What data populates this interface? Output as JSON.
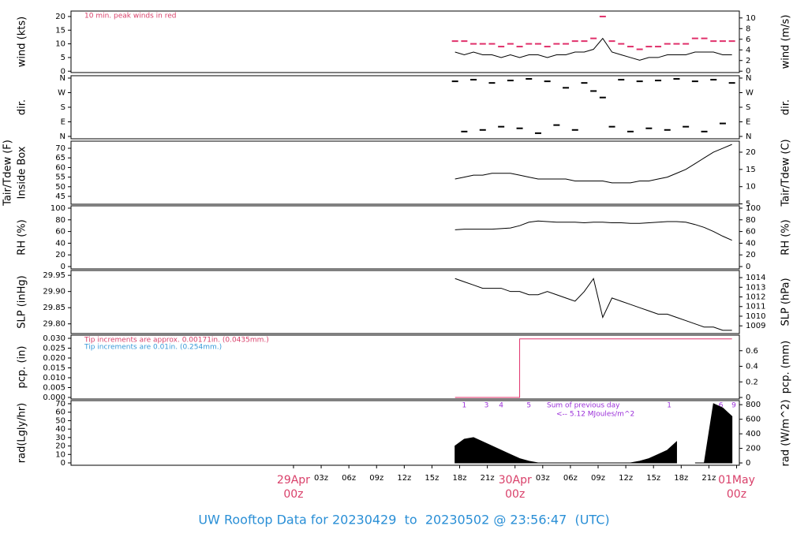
{
  "chart_data": [
    {
      "type": "line",
      "ylabel": "wind (kts)",
      "y2label": "wind (m/s)",
      "xlim": [
        -24.1,
        48.3
      ],
      "ylim": [
        -0.5,
        22
      ],
      "yticks": [
        0,
        5,
        10,
        15,
        20
      ],
      "y2lim": [
        -0.26,
        11.3
      ],
      "y2ticks": [
        0,
        2,
        4,
        6,
        8,
        10
      ],
      "annotations": [
        {
          "text": "10 min. peak winds in red",
          "color": "#d9406a"
        }
      ],
      "x": [
        17.5,
        18.5,
        19.5,
        20.5,
        21.5,
        22.5,
        23.5,
        24.5,
        25.5,
        26.5,
        27.5,
        28.5,
        29.5,
        30.5,
        31.5,
        32.5,
        33.5,
        34.5,
        35.5,
        36.5,
        37.5,
        38.5,
        39.5,
        40.5,
        41.5,
        42.5,
        43.5,
        44.5,
        45.5,
        46.5,
        47.5
      ],
      "series": [
        {
          "color": "#000000",
          "marker": "line",
          "values": [
            7,
            6,
            7,
            6,
            6,
            5,
            6,
            5,
            6,
            6,
            5,
            6,
            6,
            7,
            7,
            8,
            12,
            7,
            6,
            5,
            4,
            5,
            5,
            6,
            6,
            6,
            7,
            7,
            7,
            6,
            6
          ]
        },
        {
          "color": "#e0306a",
          "marker": "dash",
          "values": [
            11,
            11,
            10,
            10,
            10,
            9,
            10,
            9,
            10,
            10,
            9,
            10,
            10,
            11,
            11,
            12,
            20,
            11,
            10,
            9,
            8,
            9,
            9,
            10,
            10,
            10,
            12,
            12,
            11,
            11,
            11
          ]
        }
      ]
    },
    {
      "type": "scatter",
      "ylabel": "dir.",
      "y2label": "dir.",
      "xlim": [
        -24.1,
        48.3
      ],
      "ylim": [
        -14.6,
        374.6
      ],
      "yticks": [
        {
          "value": 0,
          "label": "N"
        },
        {
          "value": 90,
          "label": "E"
        },
        {
          "value": 180,
          "label": "S"
        },
        {
          "value": 270,
          "label": "W"
        },
        {
          "value": 360,
          "label": "N"
        }
      ],
      "y2lim": [
        -14.6,
        374.6
      ],
      "y2ticks": [
        {
          "value": 0,
          "label": "N"
        },
        {
          "value": 90,
          "label": "E"
        },
        {
          "value": 180,
          "label": "S"
        },
        {
          "value": 270,
          "label": "W"
        },
        {
          "value": 360,
          "label": "N"
        }
      ],
      "x": [
        17.5,
        18.5,
        19.5,
        20.5,
        21.5,
        22.5,
        23.5,
        24.5,
        25.5,
        26.5,
        27.5,
        28.5,
        29.5,
        30.5,
        31.5,
        32.5,
        33.5,
        34.5,
        35.5,
        36.5,
        37.5,
        38.5,
        39.5,
        40.5,
        41.5,
        42.5,
        43.5,
        44.5,
        45.5,
        46.5,
        47.5
      ],
      "series": [
        {
          "color": "#000000",
          "marker": "dash",
          "values": [
            340,
            30,
            350,
            40,
            330,
            60,
            345,
            50,
            355,
            20,
            340,
            70,
            300,
            40,
            330,
            280,
            240,
            60,
            350,
            30,
            340,
            50,
            345,
            40,
            355,
            60,
            340,
            30,
            350,
            80,
            330
          ]
        }
      ]
    },
    {
      "type": "line",
      "ylabel": "Tair/Tdew (F)",
      "ylabel2": "Inside Box",
      "y2label": "Tair/Tdew (C)",
      "xlim": [
        -24.1,
        48.3
      ],
      "ylim": [
        40.9,
        73.7
      ],
      "yticks": [
        45,
        50,
        55,
        60,
        65,
        70
      ],
      "y2lim": [
        4.9,
        23.2
      ],
      "y2ticks": [
        5,
        10,
        15,
        20
      ],
      "x": [
        17.5,
        18.5,
        19.5,
        20.5,
        21.5,
        22.5,
        23.5,
        24.5,
        25.5,
        26.5,
        27.5,
        28.5,
        29.5,
        30.5,
        31.5,
        32.5,
        33.5,
        34.5,
        35.5,
        36.5,
        37.5,
        38.5,
        39.5,
        40.5,
        41.5,
        42.5,
        43.5,
        44.5,
        45.5,
        46.5,
        47.5
      ],
      "series": [
        {
          "color": "#000000",
          "marker": "line",
          "values": [
            54,
            55,
            56,
            56,
            57,
            57,
            57,
            56,
            55,
            54,
            54,
            54,
            54,
            53,
            53,
            53,
            53,
            52,
            52,
            52,
            53,
            53,
            54,
            55,
            57,
            59,
            62,
            65,
            68,
            70,
            72
          ]
        }
      ]
    },
    {
      "type": "line",
      "ylabel": "RH (%)",
      "y2label": "RH (%)",
      "xlim": [
        -24.1,
        48.3
      ],
      "ylim": [
        -4,
        104
      ],
      "yticks": [
        0,
        20,
        40,
        60,
        80,
        100
      ],
      "y2lim": [
        -4,
        104
      ],
      "y2ticks": [
        0,
        20,
        40,
        60,
        80,
        100
      ],
      "x": [
        17.5,
        18.5,
        19.5,
        20.5,
        21.5,
        22.5,
        23.5,
        24.5,
        25.5,
        26.5,
        27.5,
        28.5,
        29.5,
        30.5,
        31.5,
        32.5,
        33.5,
        34.5,
        35.5,
        36.5,
        37.5,
        38.5,
        39.5,
        40.5,
        41.5,
        42.5,
        43.5,
        44.5,
        45.5,
        46.5,
        47.5
      ],
      "series": [
        {
          "color": "#000000",
          "marker": "line",
          "values": [
            63,
            64,
            64,
            64,
            64,
            65,
            66,
            70,
            76,
            78,
            77,
            76,
            76,
            76,
            75,
            76,
            76,
            75,
            75,
            74,
            74,
            75,
            76,
            77,
            77,
            76,
            72,
            67,
            60,
            52,
            45
          ]
        }
      ]
    },
    {
      "type": "line",
      "ylabel": "SLP (inHg)",
      "y2label": "SLP (hPa)",
      "xlim": [
        -24.1,
        48.3
      ],
      "ylim": [
        29.77,
        29.965
      ],
      "yticks": [
        {
          "value": 29.8,
          "label": "29.80"
        },
        {
          "value": 29.85,
          "label": "29.85"
        },
        {
          "value": 29.9,
          "label": "29.90"
        },
        {
          "value": 29.95,
          "label": "29.95"
        }
      ],
      "y2lim": [
        1008.2,
        1014.74
      ],
      "y2ticks": [
        1009,
        1010,
        1011,
        1012,
        1013,
        1014
      ],
      "x": [
        17.5,
        18.5,
        19.5,
        20.5,
        21.5,
        22.5,
        23.5,
        24.5,
        25.5,
        26.5,
        27.5,
        28.5,
        29.5,
        30.5,
        31.5,
        32.5,
        33.5,
        34.5,
        35.5,
        36.5,
        37.5,
        38.5,
        39.5,
        40.5,
        41.5,
        42.5,
        43.5,
        44.5,
        45.5,
        46.5,
        47.5
      ],
      "series": [
        {
          "color": "#000000",
          "marker": "line",
          "values": [
            29.94,
            29.93,
            29.92,
            29.91,
            29.91,
            29.91,
            29.9,
            29.9,
            29.89,
            29.89,
            29.9,
            29.89,
            29.88,
            29.87,
            29.9,
            29.94,
            29.82,
            29.88,
            29.87,
            29.86,
            29.85,
            29.84,
            29.83,
            29.83,
            29.82,
            29.81,
            29.8,
            29.79,
            29.79,
            29.78,
            29.78
          ]
        }
      ]
    },
    {
      "type": "step",
      "ylabel": "pcp. (in)",
      "y2label": "pcp. (mm)",
      "xlim": [
        -24.1,
        48.3
      ],
      "ylim": [
        -0.0008,
        0.0316
      ],
      "yticks": [
        {
          "value": 0,
          "label": "0.000"
        },
        {
          "value": 0.005,
          "label": "0.005"
        },
        {
          "value": 0.01,
          "label": "0.010"
        },
        {
          "value": 0.015,
          "label": "0.015"
        },
        {
          "value": 0.02,
          "label": "0.020"
        },
        {
          "value": 0.025,
          "label": "0.025"
        },
        {
          "value": 0.03,
          "label": "0.030"
        }
      ],
      "y2lim": [
        -0.02,
        0.8
      ],
      "y2ticks": [
        0,
        0.2,
        0.4,
        0.6
      ],
      "annotations": [
        {
          "text": "Tip increments are approx. 0.00171in. (0.0435mm.)",
          "color": "#d9406a"
        },
        {
          "text": "Tip increments are 0.01in. (0.254mm.)",
          "color": "#3a9ad9"
        }
      ],
      "x": [
        17.5,
        18.5,
        19.5,
        20.5,
        21.5,
        22.5,
        23.5,
        24.5,
        25.5,
        26.5,
        27.5,
        28.5,
        29.5,
        30.5,
        31.5,
        32.5,
        33.5,
        34.5,
        35.5,
        36.5,
        37.5,
        38.5,
        39.5,
        40.5,
        41.5,
        42.5,
        43.5,
        44.5,
        45.5,
        46.5,
        47.5
      ],
      "series": [
        {
          "color": "#e0306a",
          "marker": "line",
          "values": [
            0,
            0,
            0,
            0,
            0,
            0,
            0,
            0.0297,
            0.0297,
            0.0297,
            0.0297,
            0.0297,
            0.0297,
            0.0297,
            0.0297,
            0.0297,
            0.0297,
            0.0297,
            0.0297,
            0.0297,
            0.0297,
            0.0297,
            0.0297,
            0.0297,
            0.0297,
            0.0297,
            0.0297,
            0.0297,
            0.0297,
            0.0297,
            0.0297
          ]
        }
      ]
    },
    {
      "type": "area",
      "ylabel": "rad(Lgly/hr)",
      "y2label": "rad (W/m^2)",
      "xlim": [
        -24.1,
        48.3
      ],
      "ylim": [
        -2.8,
        73.7
      ],
      "yticks": [
        0,
        10,
        20,
        30,
        40,
        50,
        60,
        70
      ],
      "y2lim": [
        -32,
        856
      ],
      "y2ticks": [
        0,
        200,
        400,
        600,
        800
      ],
      "xticks": [
        {
          "value": 0,
          "label": "00z",
          "day": "29Apr"
        },
        {
          "value": 3,
          "label": "03z"
        },
        {
          "value": 6,
          "label": "06z"
        },
        {
          "value": 9,
          "label": "09z"
        },
        {
          "value": 12,
          "label": "12z"
        },
        {
          "value": 15,
          "label": "15z"
        },
        {
          "value": 18,
          "label": "18z"
        },
        {
          "value": 21,
          "label": "21z"
        },
        {
          "value": 24,
          "label": "00z",
          "day": "30Apr"
        },
        {
          "value": 27,
          "label": "03z"
        },
        {
          "value": 30,
          "label": "06z"
        },
        {
          "value": 33,
          "label": "09z"
        },
        {
          "value": 36,
          "label": "12z"
        },
        {
          "value": 39,
          "label": "15z"
        },
        {
          "value": 42,
          "label": "18z"
        },
        {
          "value": 45,
          "label": "21z"
        },
        {
          "value": 48,
          "label": "00z",
          "day": "01May"
        }
      ],
      "notes": [
        "Sum of previous day",
        "<-- 5.12 MJoules/m^2"
      ],
      "annotations": [
        {
          "text": "1",
          "x": 18.5
        },
        {
          "text": "3",
          "x": 20.9
        },
        {
          "text": "4",
          "x": 22.5
        },
        {
          "text": "5",
          "x": 25.5
        },
        {
          "text": "1",
          "x": 40.7
        },
        {
          "text": "6",
          "x": 46.3
        },
        {
          "text": "9",
          "x": 47.7
        }
      ],
      "x": [
        17.5,
        18.5,
        19.5,
        20.5,
        21.5,
        22.5,
        23.5,
        24.5,
        25.5,
        26.5,
        27.5,
        28.5,
        29.5,
        30.5,
        31.5,
        32.5,
        33.5,
        34.5,
        35.5,
        36.5,
        37.5,
        38.5,
        39.5,
        40.5,
        41.5,
        42.5,
        43.5,
        44.5,
        45.5,
        46.5,
        47.5
      ],
      "series": [
        {
          "color": "#000000",
          "marker": "line",
          "values": [
            20,
            28,
            30,
            25,
            20,
            15,
            10,
            5,
            2,
            0,
            0,
            0,
            0,
            0,
            0,
            0,
            0,
            0,
            0,
            0,
            2,
            5,
            10,
            15,
            25,
            null,
            0,
            0,
            70,
            65,
            55
          ]
        }
      ]
    },
    {
      "type": "title",
      "title": "UW Rooftop Data for 20230429  to  20230502 @ 23:56:47  (UTC)"
    }
  ]
}
